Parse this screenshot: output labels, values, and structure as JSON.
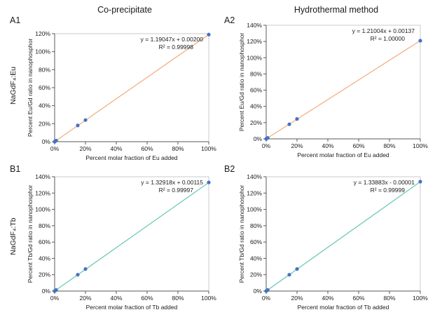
{
  "column_titles": [
    "Co-precipitate",
    "Hydrothermal method"
  ],
  "row_labels": [
    "NaGdF₄:Eu",
    "NaGdF₄:Tb"
  ],
  "colors": {
    "eu_fit": "#f4b183",
    "tb_fit": "#70c9b8",
    "points": "#4472c4",
    "axis": "#5a5a5a"
  },
  "chart_data": [
    {
      "panel": "A1",
      "type": "scatter",
      "xlabel": "Percent molar fraction of Eu added",
      "ylabel": "Percent Eu/Gd ratio in nanophosphor",
      "xlim": [
        0,
        100
      ],
      "xticks": [
        "0%",
        "20%",
        "40%",
        "60%",
        "80%",
        "100%"
      ],
      "xticks_v": [
        0,
        20,
        40,
        60,
        80,
        100
      ],
      "ylim": [
        0,
        120
      ],
      "yticks": [
        "0%",
        "20%",
        "40%",
        "60%",
        "80%",
        "100%",
        "120%"
      ],
      "yticks_v": [
        0,
        20,
        40,
        60,
        80,
        100,
        120
      ],
      "x": [
        0,
        1,
        15,
        20,
        100
      ],
      "y": [
        0,
        1.2,
        18,
        24,
        119
      ],
      "fit": {
        "slope": 1.19047,
        "intercept": 0.002,
        "equation": "y = 1.19047x + 0.00200",
        "r2": "R² = 0.99998"
      },
      "fit_color": "#f4b183"
    },
    {
      "panel": "A2",
      "type": "scatter",
      "xlabel": "Percent molar fraction of Eu added",
      "ylabel": "Percent Eu/Gd ratio in nanophosphor",
      "xlim": [
        0,
        100
      ],
      "xticks": [
        "0%",
        "20%",
        "40%",
        "60%",
        "80%",
        "100%"
      ],
      "xticks_v": [
        0,
        20,
        40,
        60,
        80,
        100
      ],
      "ylim": [
        0,
        140
      ],
      "yticks": [
        "0%",
        "20%",
        "40%",
        "60%",
        "80%",
        "100%",
        "120%",
        "140%"
      ],
      "yticks_v": [
        0,
        20,
        40,
        60,
        80,
        100,
        120,
        140
      ],
      "x": [
        0,
        1,
        15,
        20,
        100
      ],
      "y": [
        0,
        1.2,
        18,
        24.5,
        121
      ],
      "fit": {
        "slope": 1.21004,
        "intercept": 0.00137,
        "equation": "y = 1.21004x + 0.00137",
        "r2": "R² = 1.00000"
      },
      "fit_color": "#f4b183"
    },
    {
      "panel": "B1",
      "type": "scatter",
      "xlabel": "Percent molar fraction of Tb added",
      "ylabel": "Percent Tb/Gd ratio in nanophosphor",
      "xlim": [
        0,
        100
      ],
      "xticks": [
        "0%",
        "20%",
        "40%",
        "60%",
        "80%",
        "100%"
      ],
      "xticks_v": [
        0,
        20,
        40,
        60,
        80,
        100
      ],
      "ylim": [
        0,
        140
      ],
      "yticks": [
        "0%",
        "20%",
        "40%",
        "60%",
        "80%",
        "100%",
        "120%",
        "140%"
      ],
      "yticks_v": [
        0,
        20,
        40,
        60,
        80,
        100,
        120,
        140
      ],
      "x": [
        0,
        1,
        15,
        20,
        100
      ],
      "y": [
        0,
        1.3,
        20,
        27,
        133
      ],
      "fit": {
        "slope": 1.32918,
        "intercept": 0.00115,
        "equation": "y = 1.32918x + 0.00115",
        "r2": "R² = 0.99997"
      },
      "fit_color": "#70c9b8"
    },
    {
      "panel": "B2",
      "type": "scatter",
      "xlabel": "Percent molar fraction of Tb added",
      "ylabel": "Percent Tb/Gd ratio in nanophosphor",
      "xlim": [
        0,
        100
      ],
      "xticks": [
        "0%",
        "20%",
        "40%",
        "60%",
        "80%",
        "100%"
      ],
      "xticks_v": [
        0,
        20,
        40,
        60,
        80,
        100
      ],
      "ylim": [
        0,
        140
      ],
      "yticks": [
        "0%",
        "20%",
        "40%",
        "60%",
        "80%",
        "100%",
        "120%",
        "140%"
      ],
      "yticks_v": [
        0,
        20,
        40,
        60,
        80,
        100,
        120,
        140
      ],
      "x": [
        0,
        1,
        15,
        20,
        100
      ],
      "y": [
        0,
        1.3,
        20,
        27,
        134
      ],
      "fit": {
        "slope": 1.33883,
        "intercept": -1e-05,
        "equation": "y = 1.33883x - 0.00001",
        "r2": "R² = 0.99999"
      },
      "fit_color": "#70c9b8"
    }
  ]
}
